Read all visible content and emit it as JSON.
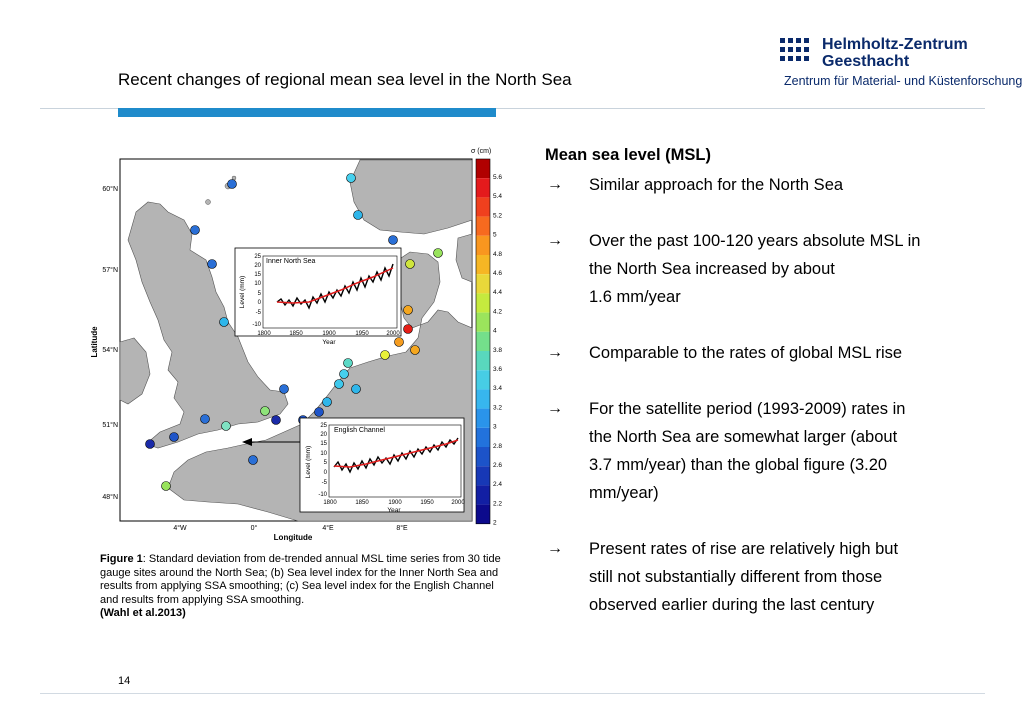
{
  "slide": {
    "title": "Recent changes of regional mean sea level in the North Sea",
    "page_number": "14"
  },
  "logo": {
    "name": "Helmholtz-Zentrum\nGeesthacht",
    "subtitle": "Zentrum für Material- und Küstenforschung"
  },
  "colors": {
    "title_bar": "#1f8bcb",
    "logo_text": "#0a2a6b",
    "trend_line": "#e11b1b"
  },
  "figure": {
    "colorbar_title": "σ (cm)",
    "colorbar_ticks": [
      "5.6",
      "5.4",
      "5.2",
      "5",
      "4.8",
      "4.6",
      "4.4",
      "4.2",
      "4",
      "3.8",
      "3.6",
      "3.4",
      "3.2",
      "3",
      "2.8",
      "2.6",
      "2.4",
      "2.2",
      "2"
    ],
    "y_axis_label": "Latitude",
    "x_axis_label": "Longitude",
    "lat_ticks": [
      "60°N",
      "57°N",
      "54°N",
      "51°N",
      "48°N"
    ],
    "lon_ticks": [
      "4°W",
      "0°",
      "4°E",
      "8°E"
    ],
    "inset_north": {
      "title": "Inner North Sea",
      "ylabel": "Level (mm)",
      "xlabel": "Year",
      "yticks": [
        "25",
        "20",
        "15",
        "10",
        "5",
        "0",
        "-5",
        "-10"
      ],
      "xticks": [
        "1800",
        "1850",
        "1900",
        "1950",
        "2000"
      ]
    },
    "inset_channel": {
      "title": "English Channel",
      "ylabel": "Level (mm)",
      "xlabel": "Year",
      "yticks": [
        "25",
        "20",
        "15",
        "10",
        "5",
        "0",
        "-5",
        "-10"
      ],
      "xticks": [
        "1800",
        "1850",
        "1900",
        "1950",
        "2000"
      ]
    }
  },
  "caption": {
    "label": "Figure 1",
    "text": ": Standard deviation from de-trended annual MSL time series from 30 tide gauge sites around the North Sea; (b) Sea level index for the Inner North Sea and results from applying SSA smoothing; (c) Sea level index for the English Channel and results from applying SSA smoothing.",
    "reference": "(Wahl et al.2013)"
  },
  "content": {
    "heading": "Mean sea level (MSL)",
    "arrow_glyph": "→",
    "bullets": [
      {
        "lines": [
          "Similar approach for the North Sea"
        ]
      },
      {
        "lines": [
          "Over the past 100-120 years absolute MSL in",
          "the North Sea  increased by about",
          "1.6 mm/year"
        ]
      },
      {
        "lines": [
          "Comparable to the rates of global MSL rise"
        ]
      },
      {
        "lines": [
          "For the satellite period (1993-2009) rates in",
          "the North Sea are somewhat larger (about",
          "3.7 mm/year) than the global figure (3.20",
          "mm/year)"
        ]
      },
      {
        "lines": [
          "Present rates of rise are relatively high but",
          "still not substantially different from those",
          "observed earlier during the last century"
        ]
      }
    ]
  }
}
